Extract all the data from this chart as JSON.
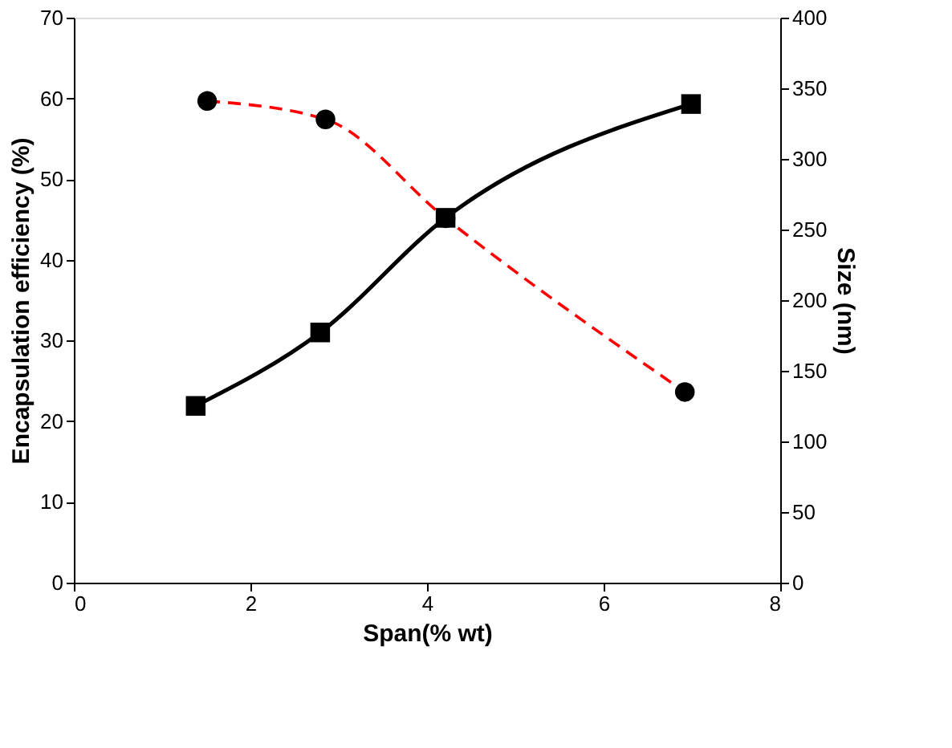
{
  "chart_data": {
    "type": "line",
    "xlabel": "Span(% wt)",
    "ylabel": "Encapsulation efficiency (%)",
    "y2label": "Size (nm)",
    "xlim": [
      0,
      8
    ],
    "xticks": [
      0,
      2,
      4,
      6,
      8
    ],
    "ylim": [
      0,
      70
    ],
    "yticks": [
      0,
      10,
      20,
      30,
      40,
      50,
      60,
      70
    ],
    "y2lim": [
      0,
      400
    ],
    "y2ticks": [
      0,
      50,
      100,
      150,
      200,
      250,
      300,
      350,
      400
    ],
    "grid": false,
    "series": [
      {
        "color": "#000000",
        "marker": "square",
        "line_style": "solid",
        "x": [
          1.38,
          2.79,
          4.21,
          6.99
        ],
        "values": [
          21.9,
          31.0,
          45.2,
          59.3
        ]
      },
      {
        "color": "#ff0000",
        "marker": "circle",
        "line_style": "dashed",
        "axis": "y2",
        "x": [
          1.51,
          2.85,
          4.21,
          6.92
        ],
        "values": [
          341,
          328,
          258,
          135
        ]
      }
    ]
  }
}
